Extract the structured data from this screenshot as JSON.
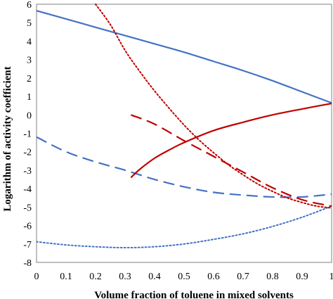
{
  "chart_data": {
    "type": "line",
    "title": "",
    "xlabel": "Volume fraction of toluene in mixed solvents",
    "ylabel": "Logarithm of activity coefficient",
    "xlim": [
      0,
      1
    ],
    "ylim": [
      -8,
      6
    ],
    "x_ticks": [
      "0",
      "0.1",
      "0.2",
      "0.3",
      "0.4",
      "0.5",
      "0.6",
      "0.7",
      "0.8",
      "0.9",
      "1"
    ],
    "y_ticks": [
      "-8",
      "-7",
      "-6",
      "-5",
      "-4",
      "-3",
      "-2",
      "-1",
      "0",
      "1",
      "2",
      "3",
      "4",
      "5",
      "6"
    ],
    "grid": false,
    "legend": "none",
    "series": [
      {
        "color": "#4472C4",
        "dash": "solid",
        "x": [
          0,
          0.1,
          0.2,
          0.3,
          0.4,
          0.5,
          0.6,
          0.7,
          0.8,
          0.9,
          1.0
        ],
        "y": [
          5.65,
          5.2,
          4.75,
          4.3,
          3.85,
          3.4,
          2.9,
          2.4,
          1.85,
          1.25,
          0.65
        ]
      },
      {
        "color": "#4472C4",
        "dash": "long-dash",
        "x": [
          0,
          0.1,
          0.2,
          0.3,
          0.4,
          0.5,
          0.6,
          0.7,
          0.8,
          0.9,
          1.0
        ],
        "y": [
          -1.2,
          -2.0,
          -2.55,
          -3.0,
          -3.5,
          -3.9,
          -4.2,
          -4.35,
          -4.45,
          -4.45,
          -4.3
        ]
      },
      {
        "color": "#4472C4",
        "dash": "dotted",
        "x": [
          0,
          0.1,
          0.2,
          0.3,
          0.4,
          0.5,
          0.6,
          0.7,
          0.8,
          0.9,
          1.0
        ],
        "y": [
          -6.88,
          -7.05,
          -7.15,
          -7.2,
          -7.15,
          -7.0,
          -6.75,
          -6.45,
          -6.05,
          -5.55,
          -4.95
        ]
      },
      {
        "color": "#C00000",
        "dash": "solid",
        "x": [
          0.32,
          0.35,
          0.4,
          0.45,
          0.5,
          0.6,
          0.7,
          0.8,
          0.9,
          1.0
        ],
        "y": [
          -3.4,
          -2.95,
          -2.35,
          -1.9,
          -1.5,
          -0.85,
          -0.4,
          0.0,
          0.32,
          0.62
        ]
      },
      {
        "color": "#C00000",
        "dash": "long-dash",
        "x": [
          0.32,
          0.4,
          0.5,
          0.6,
          0.7,
          0.8,
          0.9,
          1.0
        ],
        "y": [
          0.0,
          -0.5,
          -1.4,
          -2.25,
          -3.1,
          -3.95,
          -4.6,
          -4.95
        ]
      },
      {
        "color": "#C00000",
        "dash": "dotted",
        "x": [
          0.2,
          0.25,
          0.3,
          0.35,
          0.4,
          0.45,
          0.5,
          0.55,
          0.6,
          0.65,
          0.7,
          0.75,
          0.8,
          0.85,
          0.9,
          0.95,
          1.0
        ],
        "y": [
          6.0,
          4.9,
          3.5,
          2.35,
          1.3,
          0.35,
          -0.55,
          -1.35,
          -2.05,
          -2.7,
          -3.25,
          -3.75,
          -4.15,
          -4.5,
          -4.75,
          -4.95,
          -5.05
        ]
      }
    ]
  }
}
